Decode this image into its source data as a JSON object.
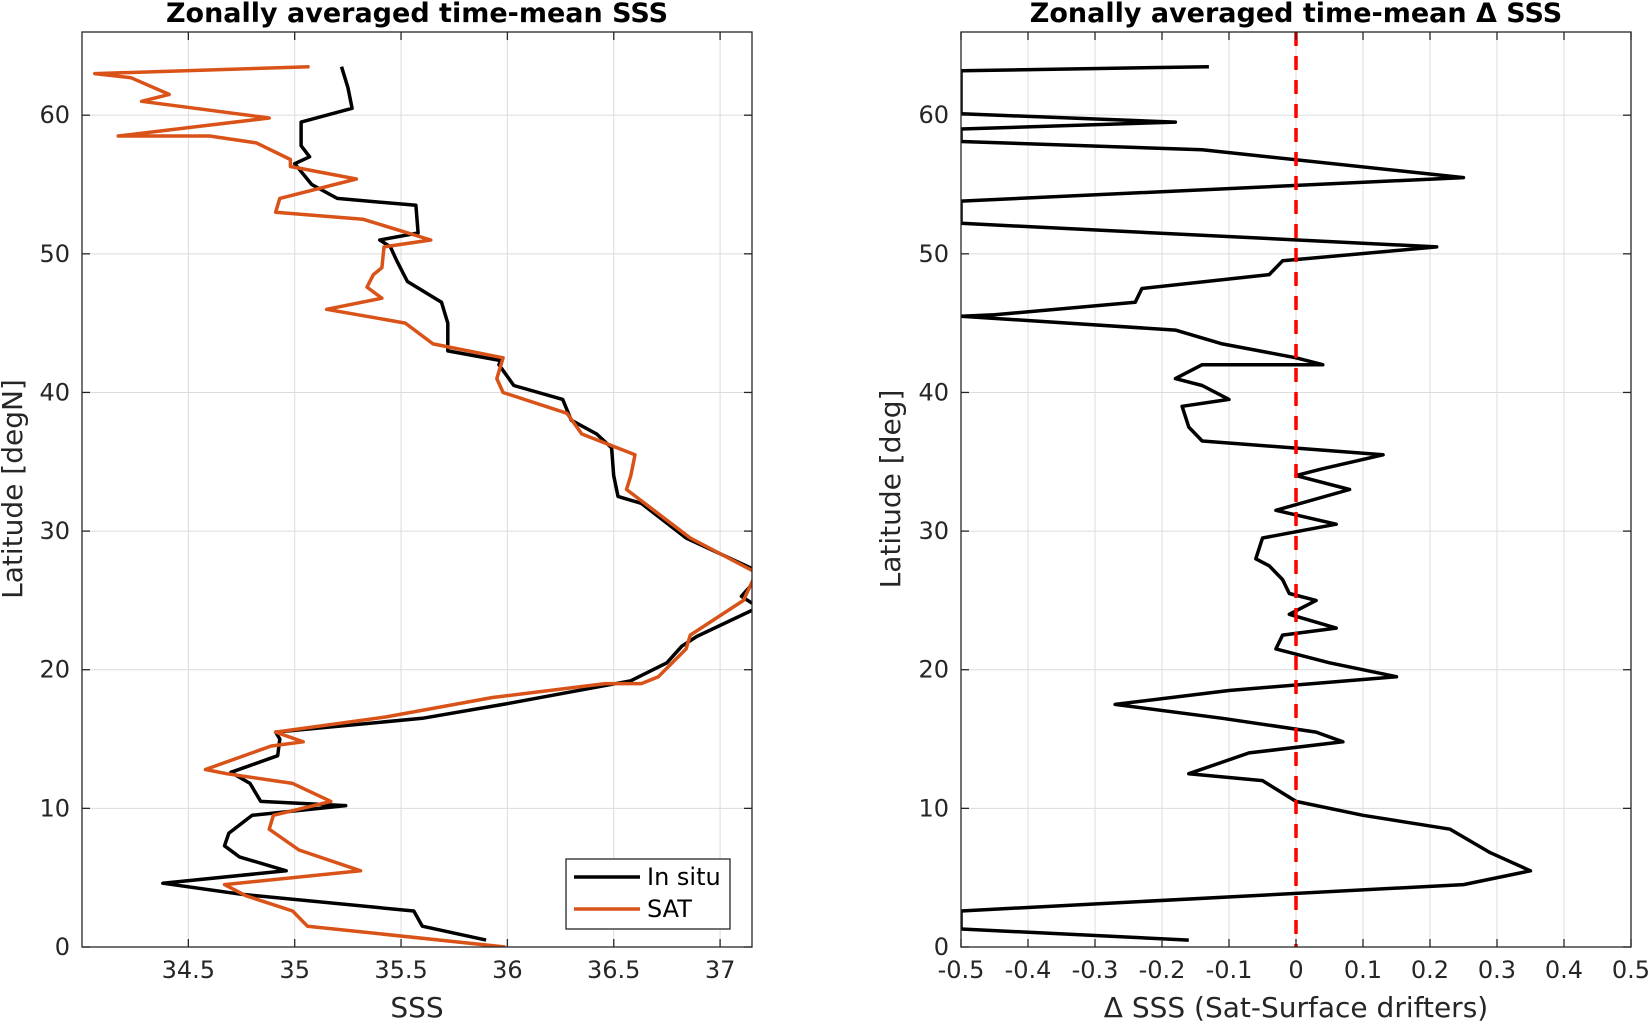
{
  "chart_data": [
    {
      "type": "line",
      "title": "Zonally averaged time-mean SSS",
      "xlabel": "SSS",
      "ylabel": "Latitude [degN]",
      "xlim": [
        34.0,
        37.15
      ],
      "ylim": [
        0,
        66
      ],
      "xticks": [
        34.5,
        35,
        35.5,
        36,
        36.5,
        37
      ],
      "xtick_labels": [
        "34.5",
        "35",
        "35.5",
        "36",
        "36.5",
        "37"
      ],
      "yticks": [
        0,
        10,
        20,
        30,
        40,
        50,
        60
      ],
      "ytick_labels": [
        "0",
        "10",
        "20",
        "30",
        "40",
        "50",
        "60"
      ],
      "grid": true,
      "legend": "bottom-right",
      "series": [
        {
          "name": "In situ",
          "color": "#000000",
          "points": [
            [
              35.9,
              0.5
            ],
            [
              35.6,
              1.5
            ],
            [
              35.56,
              2.6
            ],
            [
              34.75,
              3.8
            ],
            [
              34.38,
              4.6
            ],
            [
              34.96,
              5.5
            ],
            [
              34.74,
              6.5
            ],
            [
              34.67,
              7.3
            ],
            [
              34.69,
              8.2
            ],
            [
              34.8,
              9.5
            ],
            [
              35.24,
              10.2
            ],
            [
              34.84,
              10.5
            ],
            [
              34.79,
              11.8
            ],
            [
              34.7,
              12.6
            ],
            [
              34.92,
              13.8
            ],
            [
              34.93,
              15.0
            ],
            [
              34.91,
              15.5
            ],
            [
              35.6,
              16.5
            ],
            [
              35.98,
              17.5
            ],
            [
              36.58,
              19.2
            ],
            [
              36.75,
              20.5
            ],
            [
              36.82,
              21.7
            ],
            [
              36.89,
              22.4
            ],
            [
              37.18,
              24.5
            ],
            [
              37.1,
              25.3
            ],
            [
              37.17,
              26.5
            ],
            [
              37.15,
              27.3
            ],
            [
              36.84,
              29.5
            ],
            [
              36.63,
              32.0
            ],
            [
              36.52,
              32.5
            ],
            [
              36.5,
              34.0
            ],
            [
              36.49,
              36.0
            ],
            [
              36.42,
              37.0
            ],
            [
              36.3,
              38.0
            ],
            [
              36.26,
              39.5
            ],
            [
              36.03,
              40.5
            ],
            [
              35.96,
              42.0
            ],
            [
              35.97,
              42.3
            ],
            [
              35.72,
              43.0
            ],
            [
              35.72,
              45.0
            ],
            [
              35.69,
              46.5
            ],
            [
              35.53,
              48.0
            ],
            [
              35.48,
              49.5
            ],
            [
              35.45,
              50.5
            ],
            [
              35.4,
              51.0
            ],
            [
              35.58,
              51.5
            ],
            [
              35.57,
              53.5
            ],
            [
              35.2,
              54.0
            ],
            [
              35.08,
              55.0
            ],
            [
              35.0,
              56.5
            ],
            [
              35.07,
              57.0
            ],
            [
              35.03,
              57.8
            ],
            [
              35.03,
              59.5
            ],
            [
              35.27,
              60.5
            ],
            [
              35.25,
              62.0
            ],
            [
              35.22,
              63.5
            ]
          ]
        },
        {
          "name": "SAT",
          "color": "#D95319",
          "points": [
            [
              35.99,
              0.0
            ],
            [
              35.06,
              1.5
            ],
            [
              34.99,
              2.6
            ],
            [
              34.77,
              3.7
            ],
            [
              34.67,
              4.5
            ],
            [
              35.31,
              5.5
            ],
            [
              35.02,
              7.0
            ],
            [
              34.88,
              8.5
            ],
            [
              34.9,
              9.5
            ],
            [
              35.17,
              10.5
            ],
            [
              34.99,
              11.8
            ],
            [
              34.68,
              12.5
            ],
            [
              34.58,
              12.8
            ],
            [
              34.89,
              14.5
            ],
            [
              35.04,
              14.8
            ],
            [
              34.91,
              15.5
            ],
            [
              35.43,
              16.6
            ],
            [
              35.93,
              18.0
            ],
            [
              36.46,
              19.0
            ],
            [
              36.63,
              19.0
            ],
            [
              36.71,
              19.5
            ],
            [
              36.84,
              21.5
            ],
            [
              36.86,
              22.5
            ],
            [
              37.11,
              25.0
            ],
            [
              37.17,
              27.0
            ],
            [
              36.86,
              29.5
            ],
            [
              36.56,
              33.0
            ],
            [
              36.58,
              34.0
            ],
            [
              36.6,
              35.5
            ],
            [
              36.35,
              37.0
            ],
            [
              36.28,
              38.5
            ],
            [
              35.98,
              40.0
            ],
            [
              35.95,
              41.0
            ],
            [
              35.98,
              42.5
            ],
            [
              35.65,
              43.5
            ],
            [
              35.52,
              45.0
            ],
            [
              35.15,
              46.0
            ],
            [
              35.41,
              46.8
            ],
            [
              35.34,
              47.6
            ],
            [
              35.37,
              48.5
            ],
            [
              35.41,
              49.0
            ],
            [
              35.42,
              50.5
            ],
            [
              35.64,
              51.0
            ],
            [
              35.32,
              52.5
            ],
            [
              34.91,
              53.0
            ],
            [
              34.93,
              54.0
            ],
            [
              35.29,
              55.4
            ],
            [
              34.98,
              56.3
            ],
            [
              34.98,
              56.8
            ],
            [
              34.82,
              58.0
            ],
            [
              34.6,
              58.5
            ],
            [
              34.17,
              58.5
            ],
            [
              34.88,
              59.8
            ],
            [
              34.28,
              61.0
            ],
            [
              34.41,
              61.5
            ],
            [
              34.23,
              62.7
            ],
            [
              34.06,
              63.0
            ],
            [
              35.07,
              63.5
            ]
          ]
        }
      ]
    },
    {
      "type": "line",
      "title": "Zonally averaged time-mean Δ SSS",
      "xlabel": "Δ SSS (Sat-Surface drifters)",
      "ylabel": "Latitude [deg]",
      "xlim": [
        -0.5,
        0.5
      ],
      "ylim": [
        0,
        66
      ],
      "xticks": [
        -0.5,
        -0.4,
        -0.3,
        -0.2,
        -0.1,
        0,
        0.1,
        0.2,
        0.3,
        0.4,
        0.5
      ],
      "xtick_labels": [
        "-0.5",
        "-0.4",
        "-0.3",
        "-0.2",
        "-0.1",
        "0",
        "0.1",
        "0.2",
        "0.3",
        "0.4",
        "0.5"
      ],
      "yticks": [
        0,
        10,
        20,
        30,
        40,
        50,
        60
      ],
      "ytick_labels": [
        "0",
        "10",
        "20",
        "30",
        "40",
        "50",
        "60"
      ],
      "grid": true,
      "reference_line": {
        "x": 0,
        "color": "#FF0000",
        "style": "dashed"
      },
      "series": [
        {
          "color": "#000000",
          "points": [
            [
              -0.16,
              0.5
            ],
            [
              -0.5,
              1.3
            ],
            [
              -0.5,
              2.6
            ],
            [
              0.25,
              4.5
            ],
            [
              0.35,
              5.5
            ],
            [
              0.29,
              6.8
            ],
            [
              0.23,
              8.5
            ],
            [
              0.1,
              9.5
            ],
            [
              0.0,
              10.5
            ],
            [
              -0.05,
              12.0
            ],
            [
              -0.16,
              12.5
            ],
            [
              -0.07,
              14.0
            ],
            [
              0.07,
              14.8
            ],
            [
              0.03,
              15.5
            ],
            [
              -0.11,
              16.5
            ],
            [
              -0.27,
              17.5
            ],
            [
              -0.1,
              18.5
            ],
            [
              0.15,
              19.5
            ],
            [
              0.05,
              20.5
            ],
            [
              -0.03,
              21.5
            ],
            [
              -0.02,
              22.5
            ],
            [
              0.06,
              23.0
            ],
            [
              -0.01,
              24.0
            ],
            [
              0.03,
              25.0
            ],
            [
              -0.01,
              25.5
            ],
            [
              -0.02,
              26.5
            ],
            [
              -0.04,
              27.5
            ],
            [
              -0.06,
              28.0
            ],
            [
              -0.05,
              29.5
            ],
            [
              0.06,
              30.5
            ],
            [
              -0.03,
              31.5
            ],
            [
              0.08,
              33.0
            ],
            [
              0.0,
              34.0
            ],
            [
              0.04,
              34.5
            ],
            [
              0.13,
              35.5
            ],
            [
              -0.14,
              36.5
            ],
            [
              -0.16,
              37.5
            ],
            [
              -0.17,
              39.0
            ],
            [
              -0.1,
              39.5
            ],
            [
              -0.14,
              40.5
            ],
            [
              -0.18,
              41.0
            ],
            [
              -0.14,
              42.0
            ],
            [
              0.04,
              42.0
            ],
            [
              0.0,
              42.5
            ],
            [
              -0.11,
              43.5
            ],
            [
              -0.18,
              44.5
            ],
            [
              -0.5,
              45.5
            ],
            [
              -0.45,
              45.6
            ],
            [
              -0.24,
              46.5
            ],
            [
              -0.23,
              47.5
            ],
            [
              -0.04,
              48.5
            ],
            [
              -0.02,
              49.5
            ],
            [
              0.21,
              50.5
            ],
            [
              -0.5,
              52.2
            ],
            [
              -0.5,
              53.8
            ],
            [
              0.25,
              55.5
            ],
            [
              -0.14,
              57.5
            ],
            [
              -0.5,
              58.1
            ],
            [
              -0.5,
              59.0
            ],
            [
              -0.18,
              59.5
            ],
            [
              -0.5,
              60.1
            ],
            [
              -0.5,
              63.2
            ],
            [
              -0.13,
              63.5
            ]
          ]
        }
      ]
    }
  ],
  "legend": {
    "entries": [
      {
        "label": "In situ",
        "color": "#000000"
      },
      {
        "label": "SAT",
        "color": "#D95319"
      }
    ]
  }
}
